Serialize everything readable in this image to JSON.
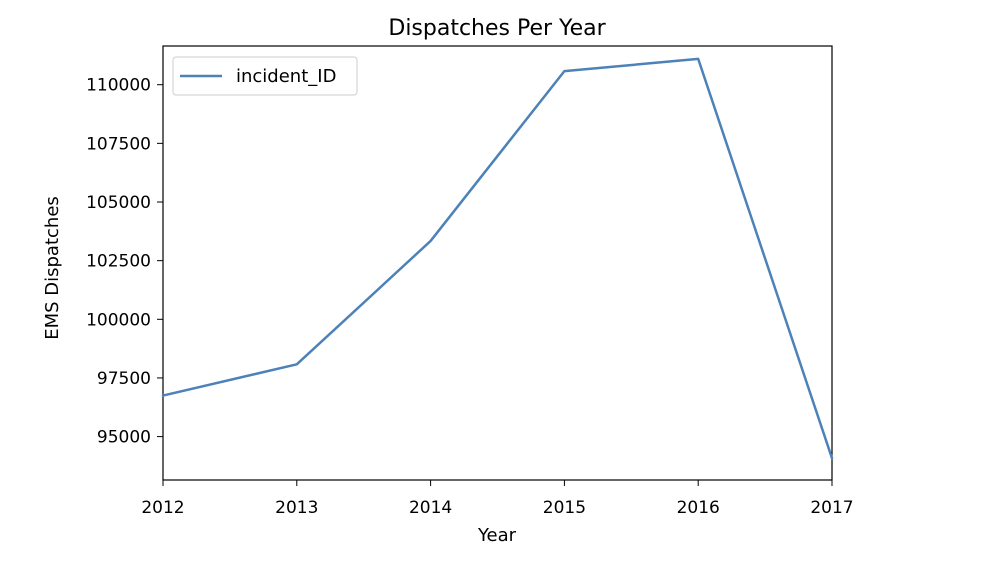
{
  "chart_data": {
    "type": "line",
    "title": "Dispatches Per Year",
    "xlabel": "Year",
    "ylabel": "EMS Dispatches",
    "x": [
      2012,
      2013,
      2014,
      2015,
      2016,
      2017
    ],
    "series": [
      {
        "name": "incident_ID",
        "values": [
          96750,
          98080,
          103340,
          110580,
          111100,
          94080
        ],
        "color": "#4c82b8"
      }
    ],
    "xlim": [
      2012,
      2017
    ],
    "ylim": [
      93150,
      111650
    ],
    "x_ticks": [
      "2012",
      "2013",
      "2014",
      "2015",
      "2016",
      "2017"
    ],
    "y_ticks": [
      95000,
      97500,
      100000,
      102500,
      105000,
      107500,
      110000
    ],
    "grid": false,
    "legend": "upper left"
  }
}
